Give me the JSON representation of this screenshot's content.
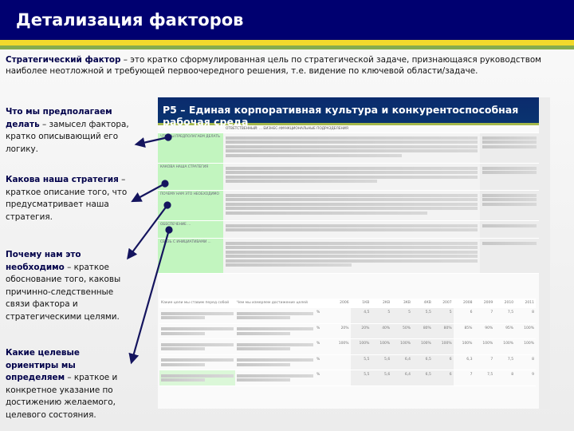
{
  "header": {
    "title": "Детализация факторов"
  },
  "intro": {
    "term": "Стратегический фактор",
    "text": " – это кратко сформулированная цель по стратегической задаче, признающаяся руководством наиболее неотложной и требующей первоочередного решения, т.е.  видение по ключевой области/задаче."
  },
  "blocks": [
    {
      "bold": "Что мы предполагаем делать",
      "text": " – замысел фактора, кратко описывающий его логику."
    },
    {
      "bold": "Какова наша стратегия",
      "text": " – краткое описание того, что предусматривает наша стратегия."
    },
    {
      "bold": "Почему нам это необходимо",
      "text": " – краткое обоснование того, каковы причинно-следственные связи фактора и стратегическими целями."
    },
    {
      "bold": "Какие целевые ориентиры мы определяем",
      "text": " – краткое и конкретное указание по достижению желаемого, целевого состояния."
    }
  ],
  "slide": {
    "title": "P5 – Единая корпоративная культура и конкурентоспособная рабочая среда",
    "responsible": "ОТВЕТСТВЕННЫЙ: ... БИЗНЕС-/ФУНКЦИОНАЛЬНЫЕ ПОДРАЗДЕЛЕНИЯ",
    "rows": [
      {
        "label": "Что мы предполагаем делать"
      },
      {
        "label": "Какова наша стратегия"
      },
      {
        "label": "Почему нам это необходимо"
      },
      {
        "label": "Обеспечение ..."
      },
      {
        "label": "Связь с инициативами ..."
      }
    ],
    "kpi": {
      "head1": "Какие цели мы ставим перед собой",
      "head2": "Чем мы измеряем достижение целей",
      "years": [
        "2006",
        "1КВ",
        "2КВ",
        "3КВ",
        "4КВ",
        "2007",
        "2008",
        "2009",
        "2010",
        "2011"
      ],
      "rows": [
        {
          "unit": "%",
          "vals": [
            "",
            "4,5",
            "5",
            "5",
            "5,5",
            "5",
            "6",
            "7",
            "7,5",
            "8"
          ]
        },
        {
          "unit": "%",
          "vals": [
            "20%",
            "20%",
            "40%",
            "50%",
            "80%",
            "80%",
            "85%",
            "90%",
            "95%",
            "100%"
          ]
        },
        {
          "unit": "%",
          "vals": [
            "100%",
            "100%",
            "100%",
            "100%",
            "100%",
            "100%",
            "100%",
            "100%",
            "100%",
            "100%"
          ]
        },
        {
          "unit": "%",
          "vals": [
            "",
            "5,5",
            "5,6",
            "6,4",
            "6,5",
            "6",
            "6,3",
            "7",
            "7,5",
            "8"
          ]
        },
        {
          "unit": "%",
          "vals": [
            "",
            "5,5",
            "5,6",
            "6,4",
            "6,5",
            "6",
            "7",
            "7,5",
            "8",
            "9"
          ]
        }
      ]
    }
  },
  "colors": {
    "navy": "#000070",
    "yellow": "#f2d92c",
    "green": "#86ac4e",
    "arrow": "#14145e"
  }
}
